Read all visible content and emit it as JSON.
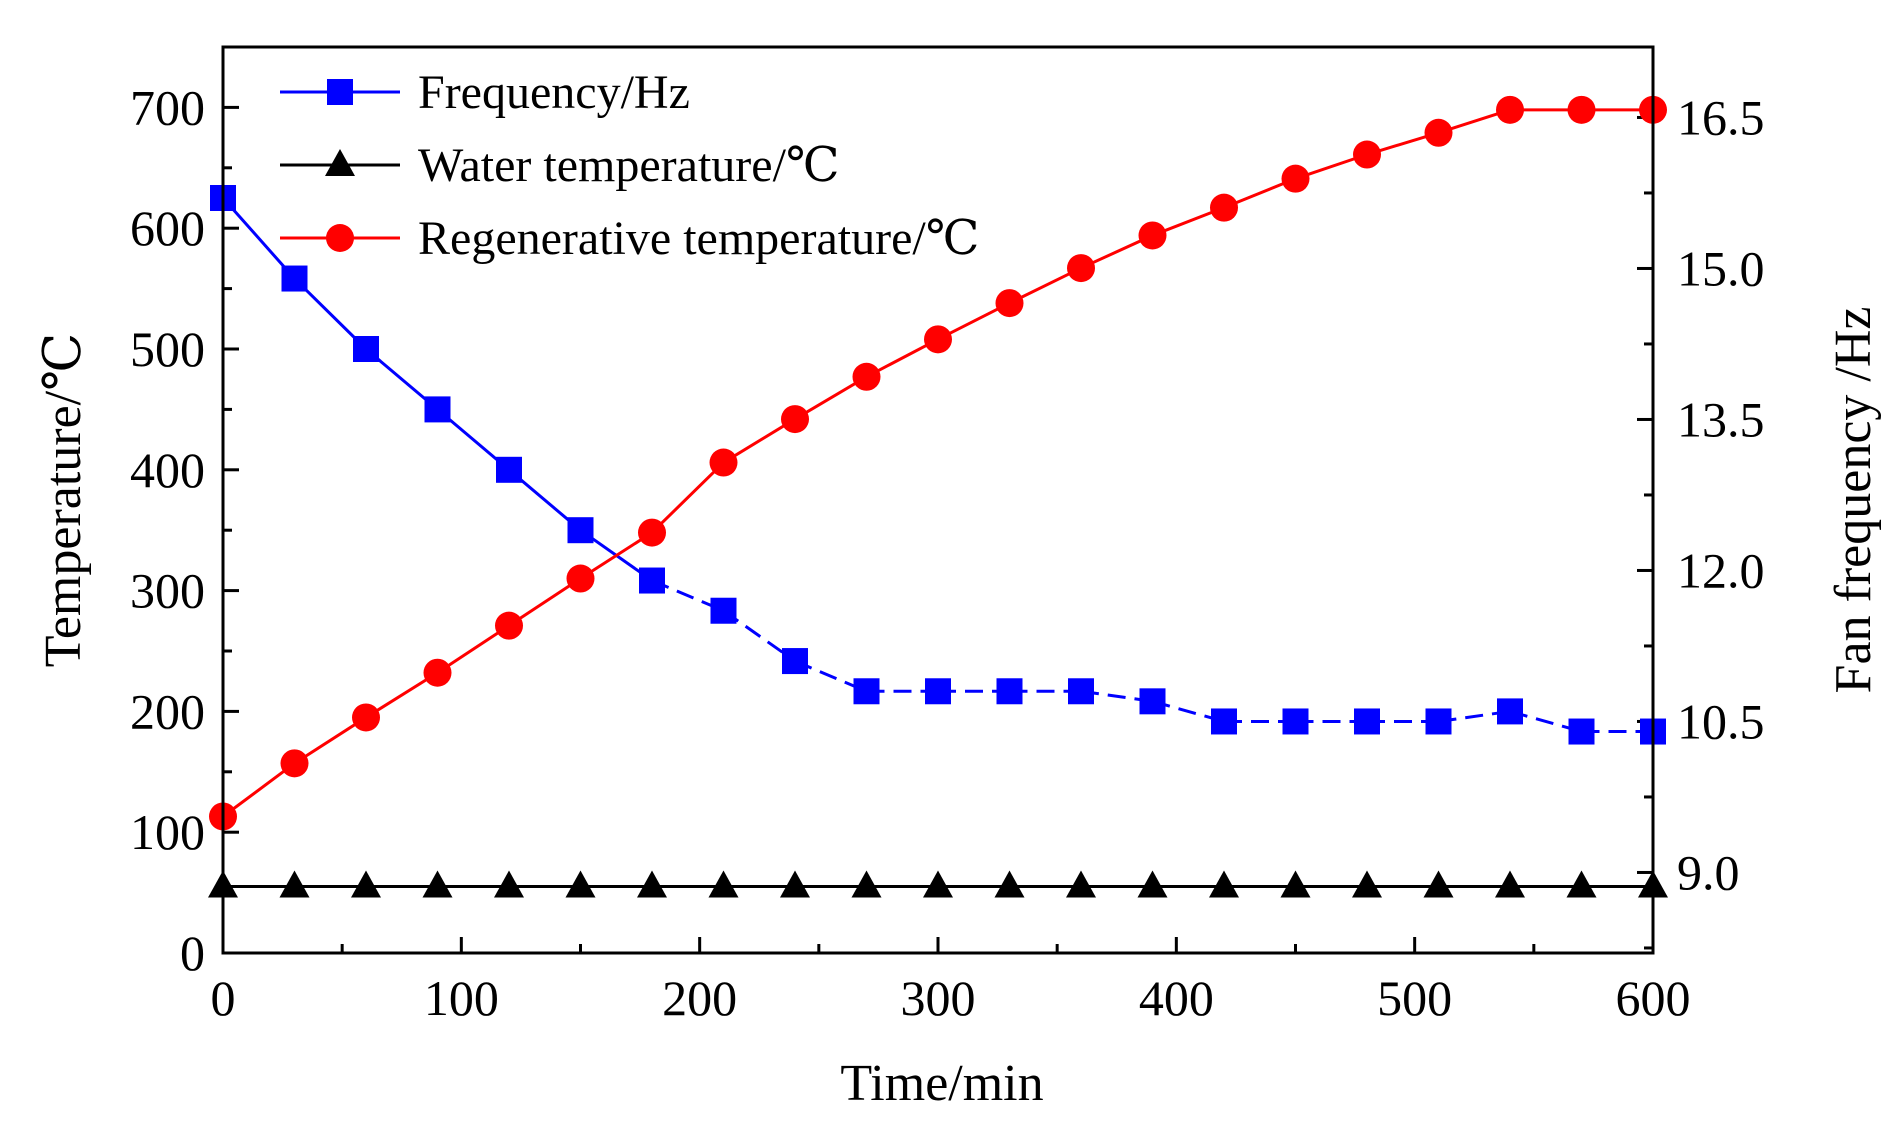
{
  "chart_data": {
    "type": "line",
    "xlabel": "Time/min",
    "ylabel_left": "Temperature/℃",
    "ylabel_right": "Fan frequency /Hz",
    "xlim": [
      0,
      600
    ],
    "ylim_left": [
      0,
      750
    ],
    "ylim_right": [
      8.2,
      17.2
    ],
    "x_ticks": [
      "0",
      "100",
      "200",
      "300",
      "400",
      "500",
      "600"
    ],
    "y_left_ticks": [
      "0",
      "100",
      "200",
      "300",
      "400",
      "500",
      "600",
      "700"
    ],
    "y_right_ticks": [
      "9.0",
      "10.5",
      "12.0",
      "13.5",
      "15.0",
      "16.5"
    ],
    "grid": false,
    "legend_position": "top-left",
    "x": [
      0,
      30,
      60,
      90,
      120,
      150,
      180,
      210,
      240,
      270,
      300,
      330,
      360,
      390,
      420,
      450,
      480,
      510,
      540,
      570,
      600
    ],
    "series": [
      {
        "name": "Frequency/Hz",
        "axis": "right",
        "marker": "square",
        "color": "#0000ff",
        "dashed_after_x": 180,
        "values": [
          15.7,
          14.9,
          14.2,
          13.6,
          13.0,
          12.4,
          11.9,
          11.6,
          11.1,
          10.8,
          10.8,
          10.8,
          10.8,
          10.7,
          10.5,
          10.5,
          10.5,
          10.5,
          10.6,
          10.4,
          10.4
        ]
      },
      {
        "name": "Water temperature/℃",
        "axis": "left",
        "marker": "triangle",
        "color": "#000000",
        "values": [
          55,
          55,
          55,
          55,
          55,
          55,
          55,
          55,
          55,
          55,
          55,
          55,
          55,
          55,
          55,
          55,
          55,
          55,
          55,
          55,
          55
        ]
      },
      {
        "name": "Regenerative temperature/℃",
        "axis": "left",
        "marker": "circle",
        "color": "#ff0000",
        "values": [
          113,
          157,
          195,
          232,
          271,
          310,
          348,
          406,
          442,
          477,
          508,
          538,
          567,
          594,
          617,
          641,
          661,
          679,
          698,
          698,
          698
        ]
      }
    ]
  }
}
